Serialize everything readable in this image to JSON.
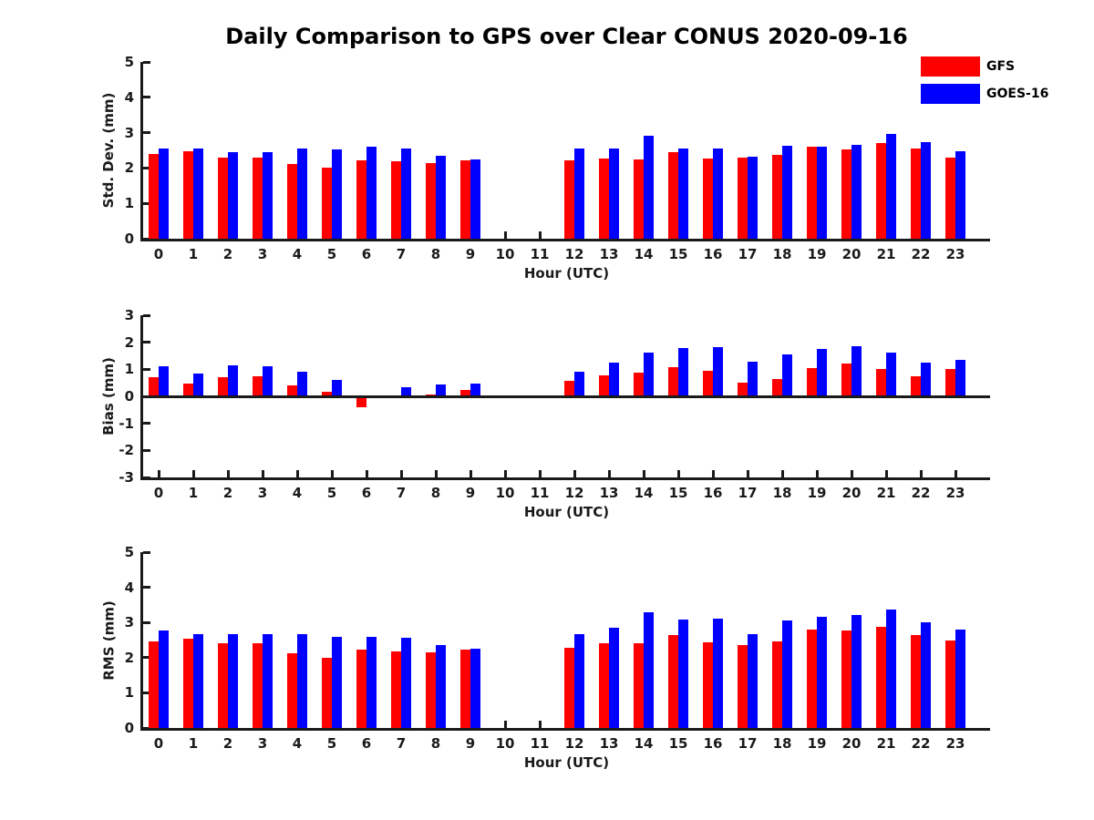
{
  "title": "Daily Comparison to GPS over Clear CONUS 2020-09-16",
  "legend": {
    "entries": [
      {
        "label": "GFS",
        "color": "#ff0000"
      },
      {
        "label": "GOES-16",
        "color": "#0000ff"
      }
    ]
  },
  "chart_data": [
    {
      "type": "bar",
      "title": "Daily Comparison to GPS over Clear CONUS 2020-09-16",
      "ylabel": "Std. Dev. (mm)",
      "xlabel": "Hour (UTC)",
      "ylim": [
        0,
        5
      ],
      "yticks": [
        0,
        1,
        2,
        3,
        4,
        5
      ],
      "categories": [
        "0",
        "1",
        "2",
        "3",
        "4",
        "5",
        "6",
        "7",
        "8",
        "9",
        "10",
        "11",
        "12",
        "13",
        "14",
        "15",
        "16",
        "17",
        "18",
        "19",
        "20",
        "21",
        "22",
        "23"
      ],
      "legend_position": "upper-right-outside",
      "grid": false,
      "series": [
        {
          "name": "GFS",
          "color": "#ff0000",
          "values": [
            2.4,
            2.48,
            2.3,
            2.3,
            2.12,
            2.0,
            2.22,
            2.2,
            2.13,
            2.22,
            null,
            null,
            2.22,
            2.28,
            2.25,
            2.44,
            2.27,
            2.3,
            2.37,
            2.61,
            2.53,
            2.7,
            2.54,
            2.3
          ]
        },
        {
          "name": "GOES-16",
          "color": "#0000ff",
          "values": [
            2.55,
            2.55,
            2.44,
            2.44,
            2.54,
            2.52,
            2.6,
            2.55,
            2.35,
            2.24,
            null,
            null,
            2.56,
            2.56,
            2.9,
            2.56,
            2.55,
            2.33,
            2.64,
            2.61,
            2.65,
            2.97,
            2.73,
            2.47
          ]
        }
      ]
    },
    {
      "type": "bar",
      "title": "",
      "ylabel": "Bias (mm)",
      "xlabel": "Hour (UTC)",
      "ylim": [
        -3,
        3
      ],
      "yticks": [
        3,
        2,
        1,
        0,
        -1,
        -2,
        -3
      ],
      "categories": [
        "0",
        "1",
        "2",
        "3",
        "4",
        "5",
        "6",
        "7",
        "8",
        "9",
        "10",
        "11",
        "12",
        "13",
        "14",
        "15",
        "16",
        "17",
        "18",
        "19",
        "20",
        "21",
        "22",
        "23"
      ],
      "grid": false,
      "series": [
        {
          "name": "GFS",
          "color": "#ff0000",
          "values": [
            0.72,
            0.48,
            0.72,
            0.73,
            0.4,
            0.17,
            -0.42,
            -0.08,
            0.07,
            0.25,
            null,
            null,
            0.58,
            0.78,
            0.87,
            1.09,
            0.93,
            0.51,
            0.64,
            1.03,
            1.2,
            1.02,
            0.75,
            1.0
          ]
        },
        {
          "name": "GOES-16",
          "color": "#0000ff",
          "values": [
            1.12,
            0.83,
            1.15,
            1.1,
            0.9,
            0.59,
            -0.07,
            0.35,
            0.45,
            0.48,
            null,
            null,
            0.92,
            1.24,
            1.62,
            1.8,
            1.83,
            1.29,
            1.56,
            1.76,
            1.85,
            1.63,
            1.25,
            1.36
          ]
        }
      ]
    },
    {
      "type": "bar",
      "title": "",
      "ylabel": "RMS (mm)",
      "xlabel": "Hour (UTC)",
      "ylim": [
        0,
        5
      ],
      "yticks": [
        0,
        1,
        2,
        3,
        4,
        5
      ],
      "categories": [
        "0",
        "1",
        "2",
        "3",
        "4",
        "5",
        "6",
        "7",
        "8",
        "9",
        "10",
        "11",
        "12",
        "13",
        "14",
        "15",
        "16",
        "17",
        "18",
        "19",
        "20",
        "21",
        "22",
        "23"
      ],
      "grid": false,
      "series": [
        {
          "name": "GFS",
          "color": "#ff0000",
          "values": [
            2.47,
            2.53,
            2.4,
            2.4,
            2.13,
            2.0,
            2.24,
            2.17,
            2.14,
            2.22,
            null,
            null,
            2.27,
            2.4,
            2.42,
            2.65,
            2.44,
            2.37,
            2.45,
            2.8,
            2.78,
            2.88,
            2.63,
            2.49
          ]
        },
        {
          "name": "GOES-16",
          "color": "#0000ff",
          "values": [
            2.78,
            2.66,
            2.67,
            2.66,
            2.67,
            2.58,
            2.58,
            2.56,
            2.36,
            2.26,
            null,
            null,
            2.68,
            2.84,
            3.3,
            3.08,
            3.12,
            2.68,
            3.06,
            3.16,
            3.22,
            3.36,
            3.0,
            2.79
          ]
        }
      ]
    }
  ]
}
